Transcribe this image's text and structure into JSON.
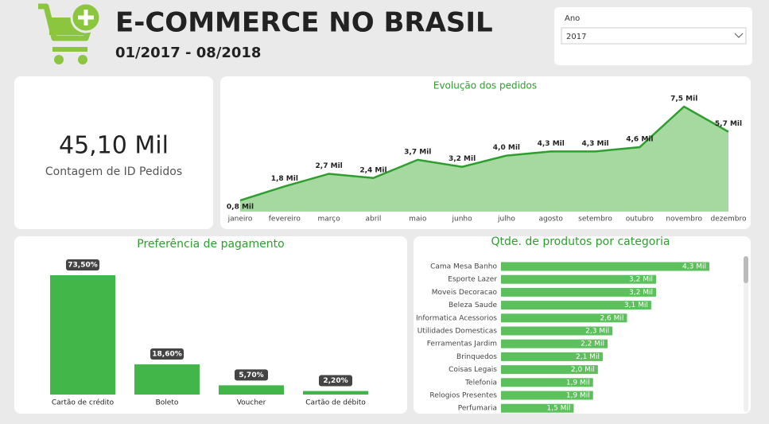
{
  "header": {
    "title": "E-COMMERCE NO BRASIL",
    "subtitle": "01/2017 - 08/2018"
  },
  "slicer": {
    "label": "Ano",
    "value": "2017"
  },
  "card": {
    "value": "45,10 Mil",
    "label": "Contagem de ID Pedidos"
  },
  "chart_data": [
    {
      "type": "area",
      "title": "Evolução dos pedidos",
      "categories": [
        "janeiro",
        "fevereiro",
        "março",
        "abril",
        "maio",
        "junho",
        "julho",
        "agosto",
        "setembro",
        "outubro",
        "novembro",
        "dezembro"
      ],
      "values": [
        0.8,
        1.8,
        2.7,
        2.4,
        3.7,
        3.2,
        4.0,
        4.3,
        4.3,
        4.6,
        7.5,
        5.7
      ],
      "value_labels": [
        "0,8 Mil",
        "1,8 Mil",
        "2,7 Mil",
        "2,4 Mil",
        "3,7 Mil",
        "3,2 Mil",
        "4,0 Mil",
        "4,3 Mil",
        "4,3 Mil",
        "4,6 Mil",
        "7,5 Mil",
        "5,7 Mil"
      ],
      "color": "#2e9e2e",
      "fill": "#a6d9a0"
    },
    {
      "type": "bar",
      "title": "Preferência de pagamento",
      "categories": [
        "Cartão de crédito",
        "Boleto",
        "Voucher",
        "Cartão de débito"
      ],
      "values": [
        73.5,
        18.6,
        5.7,
        2.2
      ],
      "value_labels": [
        "73,50%",
        "18,60%",
        "5,70%",
        "2,20%"
      ],
      "color": "#43b649"
    },
    {
      "type": "hbar",
      "title": "Qtde. de produtos por categoria",
      "categories": [
        "Cama Mesa Banho",
        "Esporte Lazer",
        "Moveis Decoracao",
        "Beleza Saude",
        "Informatica Acessorios",
        "Utilidades Domesticas",
        "Ferramentas Jardim",
        "Brinquedos",
        "Coisas Legais",
        "Telefonia",
        "Relogios Presentes",
        "Perfumaria"
      ],
      "values": [
        4.3,
        3.2,
        3.2,
        3.1,
        2.6,
        2.3,
        2.2,
        2.1,
        2.0,
        1.9,
        1.9,
        1.5
      ],
      "value_labels": [
        "4,3 Mil",
        "3,2 Mil",
        "3,2 Mil",
        "3,1 Mil",
        "2,6 Mil",
        "2,3 Mil",
        "2,2 Mil",
        "2,1 Mil",
        "2,0 Mil",
        "1,9 Mil",
        "1,9 Mil",
        "1,5 Mil"
      ],
      "color": "#5cc15c"
    }
  ]
}
